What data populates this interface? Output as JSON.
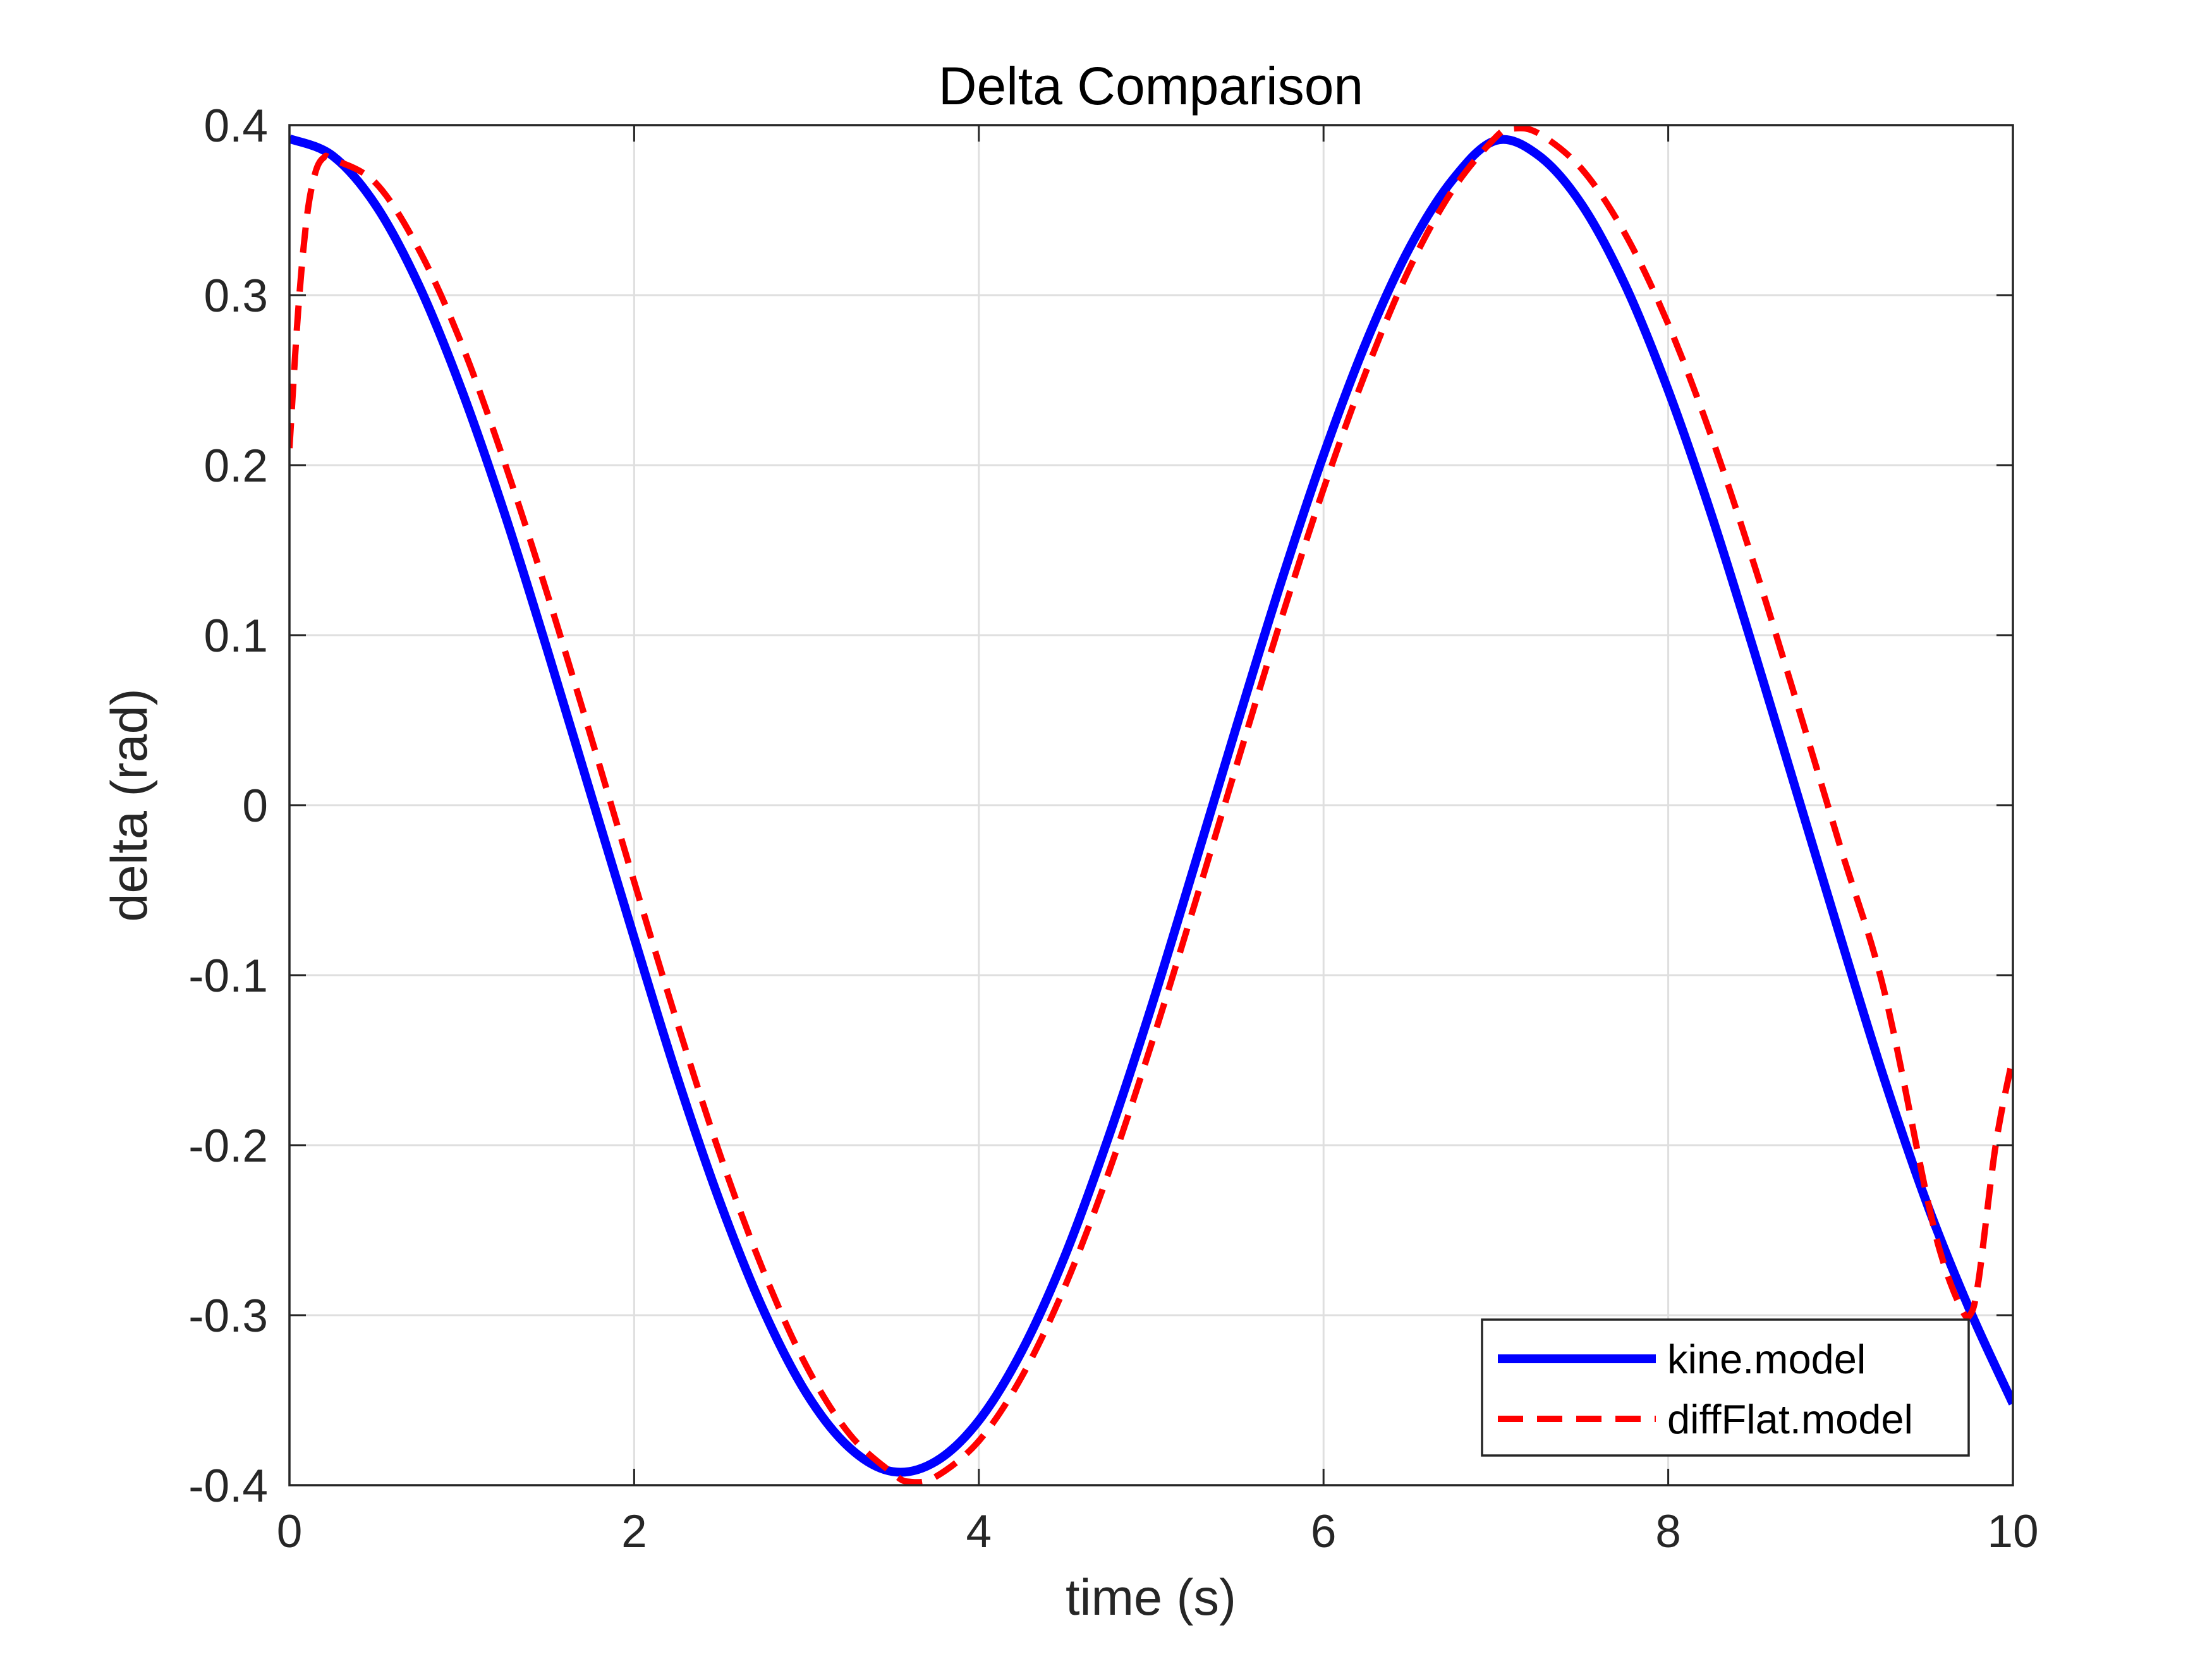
{
  "chart_data": {
    "type": "line",
    "title": "Delta Comparison",
    "xlabel": "time (s)",
    "ylabel": "delta (rad)",
    "xlim": [
      0,
      10
    ],
    "ylim": [
      -0.4,
      0.4
    ],
    "grid": true,
    "legend_position": "bottom-right",
    "x_ticks": [
      0,
      2,
      4,
      6,
      8,
      10
    ],
    "y_ticks": [
      -0.4,
      -0.3,
      -0.2,
      -0.1,
      0,
      0.1,
      0.2,
      0.3,
      0.4
    ],
    "x_tick_labels": [
      "0",
      "2",
      "4",
      "6",
      "8",
      "10"
    ],
    "y_tick_labels": [
      "-0.4",
      "-0.3",
      "-0.2",
      "-0.1",
      "0",
      "0.1",
      "0.2",
      "0.3",
      "0.4"
    ],
    "series": [
      {
        "name": "kine.model",
        "color": "#0000ff",
        "style": "solid",
        "x": [
          0,
          0.25,
          0.5,
          0.75,
          1.0,
          1.25,
          1.5,
          1.75,
          2.0,
          2.25,
          2.5,
          2.75,
          3.0,
          3.25,
          3.5,
          3.75,
          4.0,
          4.25,
          4.5,
          4.75,
          5.0,
          5.25,
          5.5,
          5.75,
          6.0,
          6.25,
          6.5,
          6.75,
          7.0,
          7.25,
          7.5,
          7.75,
          8.0,
          8.25,
          8.5,
          8.75,
          9.0,
          9.25,
          9.5,
          9.75,
          10.0
        ],
        "y": [
          0.392,
          0.382,
          0.353,
          0.306,
          0.244,
          0.171,
          0.09,
          0.006,
          -0.078,
          -0.16,
          -0.234,
          -0.297,
          -0.346,
          -0.378,
          -0.392,
          -0.386,
          -0.362,
          -0.321,
          -0.265,
          -0.196,
          -0.119,
          -0.036,
          0.048,
          0.13,
          0.206,
          0.273,
          0.328,
          0.368,
          0.391,
          0.382,
          0.353,
          0.306,
          0.244,
          0.171,
          0.09,
          0.006,
          -0.078,
          -0.16,
          -0.234,
          -0.297,
          -0.352
        ]
      },
      {
        "name": "diffFlat.model",
        "color": "#ff0000",
        "style": "dashed",
        "x": [
          0,
          0.05,
          0.1,
          0.15,
          0.2,
          0.25,
          0.5,
          0.75,
          1.0,
          1.25,
          1.5,
          1.75,
          2.0,
          2.25,
          2.5,
          2.75,
          3.0,
          3.25,
          3.5,
          3.6,
          3.75,
          4.0,
          4.25,
          4.5,
          4.75,
          5.0,
          5.25,
          5.5,
          5.75,
          6.0,
          6.25,
          6.5,
          6.75,
          7.0,
          7.1,
          7.25,
          7.5,
          7.75,
          8.0,
          8.25,
          8.5,
          8.75,
          9.0,
          9.25,
          9.5,
          9.6,
          9.7,
          9.75,
          9.8,
          9.9,
          10.0
        ],
        "y": [
          0.21,
          0.29,
          0.345,
          0.372,
          0.381,
          0.38,
          0.366,
          0.327,
          0.271,
          0.201,
          0.123,
          0.04,
          -0.045,
          -0.128,
          -0.206,
          -0.274,
          -0.33,
          -0.37,
          -0.393,
          -0.398,
          -0.395,
          -0.374,
          -0.336,
          -0.283,
          -0.217,
          -0.141,
          -0.059,
          0.025,
          0.108,
          0.186,
          0.256,
          0.316,
          0.362,
          0.393,
          0.398,
          0.395,
          0.374,
          0.336,
          0.283,
          0.217,
          0.141,
          0.059,
          -0.025,
          -0.108,
          -0.23,
          -0.27,
          -0.296,
          -0.3,
          -0.28,
          -0.2,
          -0.148
        ]
      }
    ]
  }
}
